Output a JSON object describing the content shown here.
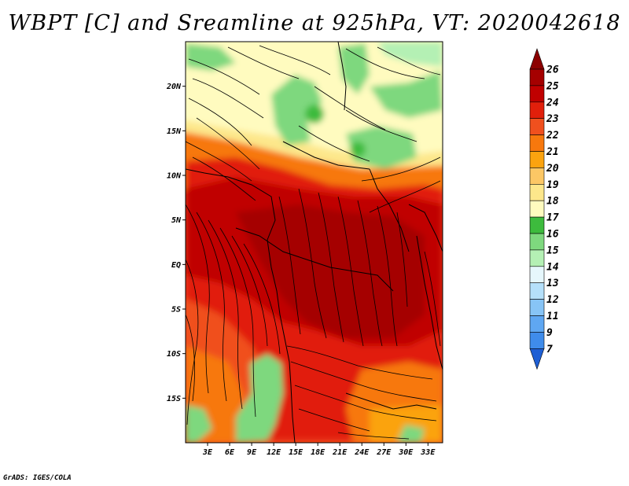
{
  "title": "WBPT [C] and Sreamline at 925hPa, VT: 2020042618",
  "credit": "GrADS: IGES/COLA",
  "map": {
    "lon_range": [
      0,
      35
    ],
    "lat_range": [
      -20,
      25
    ],
    "y_ticks": [
      {
        "lat": 20,
        "label": "20N"
      },
      {
        "lat": 15,
        "label": "15N"
      },
      {
        "lat": 10,
        "label": "10N"
      },
      {
        "lat": 5,
        "label": "5N"
      },
      {
        "lat": 0,
        "label": "EQ"
      },
      {
        "lat": -5,
        "label": "5S"
      },
      {
        "lat": -10,
        "label": "10S"
      },
      {
        "lat": -15,
        "label": "15S"
      }
    ],
    "x_ticks": [
      {
        "lon": 3,
        "label": "3E"
      },
      {
        "lon": 6,
        "label": "6E"
      },
      {
        "lon": 9,
        "label": "9E"
      },
      {
        "lon": 12,
        "label": "12E"
      },
      {
        "lon": 15,
        "label": "15E"
      },
      {
        "lon": 18,
        "label": "18E"
      },
      {
        "lon": 21,
        "label": "21E"
      },
      {
        "lon": 24,
        "label": "24E"
      },
      {
        "lon": 27,
        "label": "27E"
      },
      {
        "lon": 30,
        "label": "30E"
      },
      {
        "lon": 33,
        "label": "33E"
      }
    ]
  },
  "colorbar": {
    "levels": [
      {
        "label": "26",
        "color": "#a50000"
      },
      {
        "label": "25",
        "color": "#c00000"
      },
      {
        "label": "24",
        "color": "#e11f0b"
      },
      {
        "label": "23",
        "color": "#f0501e"
      },
      {
        "label": "22",
        "color": "#f7780d"
      },
      {
        "label": "21",
        "color": "#fba30f"
      },
      {
        "label": "20",
        "color": "#fcc765"
      },
      {
        "label": "19",
        "color": "#fde78b"
      },
      {
        "label": "18",
        "color": "#fffbbf"
      },
      {
        "label": "17",
        "color": "#3dbb3d"
      },
      {
        "label": "16",
        "color": "#7ed87e"
      },
      {
        "label": "15",
        "color": "#b4f0b4"
      },
      {
        "label": "14",
        "color": "#e6f7fc"
      },
      {
        "label": "13",
        "color": "#b5e0fa"
      },
      {
        "label": "12",
        "color": "#87c4f6"
      },
      {
        "label": "11",
        "color": "#5fa7f2"
      },
      {
        "label": "9",
        "color": "#3f8ceb"
      },
      {
        "label": "7",
        "color": "#2a6fe0"
      }
    ],
    "top_color": "#8c0000",
    "bottom_color": "#1e5fd4"
  }
}
